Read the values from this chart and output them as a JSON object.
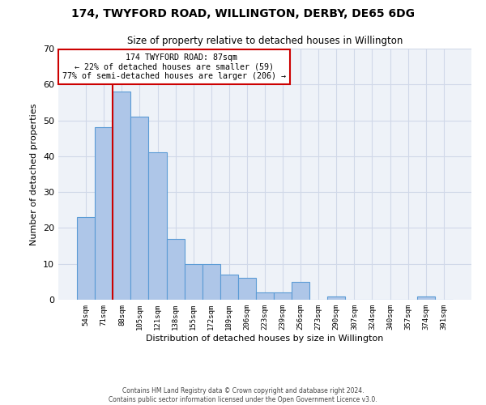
{
  "title_line1": "174, TWYFORD ROAD, WILLINGTON, DERBY, DE65 6DG",
  "title_line2": "Size of property relative to detached houses in Willington",
  "xlabel": "Distribution of detached houses by size in Willington",
  "ylabel": "Number of detached properties",
  "bar_labels": [
    "54sqm",
    "71sqm",
    "88sqm",
    "105sqm",
    "121sqm",
    "138sqm",
    "155sqm",
    "172sqm",
    "189sqm",
    "206sqm",
    "223sqm",
    "239sqm",
    "256sqm",
    "273sqm",
    "290sqm",
    "307sqm",
    "324sqm",
    "340sqm",
    "357sqm",
    "374sqm",
    "391sqm"
  ],
  "bar_values": [
    23,
    48,
    58,
    51,
    41,
    17,
    10,
    10,
    7,
    6,
    2,
    2,
    5,
    0,
    1,
    0,
    0,
    0,
    0,
    1,
    0
  ],
  "bar_color": "#aec6e8",
  "bar_edge_color": "#5b9bd5",
  "annotation_line1": "   174 TWYFORD ROAD: 87sqm",
  "annotation_line2": "← 22% of detached houses are smaller (59)",
  "annotation_line3": "77% of semi-detached houses are larger (206) →",
  "vline_color": "#cc0000",
  "annotation_box_color": "#ffffff",
  "annotation_box_edge": "#cc0000",
  "grid_color": "#d0d8e8",
  "background_color": "#eef2f8",
  "footer_line1": "Contains HM Land Registry data © Crown copyright and database right 2024.",
  "footer_line2": "Contains public sector information licensed under the Open Government Licence v3.0.",
  "ylim": [
    0,
    70
  ],
  "yticks": [
    0,
    10,
    20,
    30,
    40,
    50,
    60,
    70
  ]
}
